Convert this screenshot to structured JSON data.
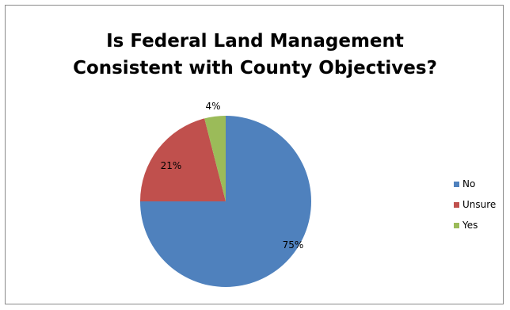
{
  "chart_data": {
    "type": "pie",
    "title_lines": [
      "Is Federal Land Management",
      "Consistent with County Objectives?"
    ],
    "slices": [
      {
        "name": "No",
        "value": 75,
        "label": "75%",
        "color": "#4f81bd"
      },
      {
        "name": "Unsure",
        "value": 21,
        "label": "21%",
        "color": "#c0504d"
      },
      {
        "name": "Yes",
        "value": 4,
        "label": "4%",
        "color": "#9bbb59"
      }
    ],
    "legend_placement": "right"
  }
}
